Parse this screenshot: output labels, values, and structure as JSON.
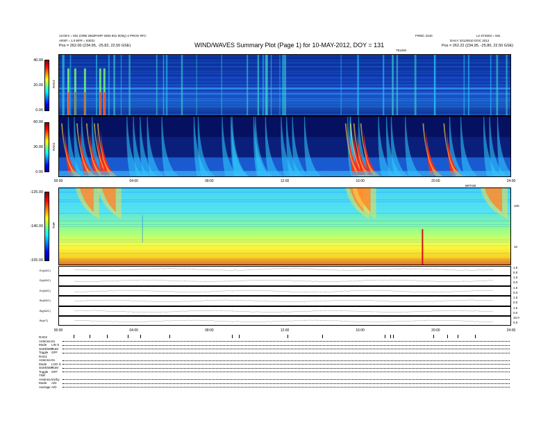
{
  "header": {
    "title": "WIND/WAVES Summary Plot (Page 1) for 10-MAY-2012, DOY = 131",
    "left_line1": "13:00:0 = 931 (ORB 2563PARP 2593 931 9/25y) 4 PROG RFC",
    "left_line2": "ARSP = 1.9 BFR = 93031",
    "left_line3": "Pos = 262.00 (234.95, -25.82, 22.50 GSE)",
    "right_line1": "L2 ST3003 = 931",
    "right_line2": "DAILY 20120510 DOC 2012",
    "right_line3": "Pos = 262.22 (234.95, -25.80, 22.50 GSE)",
    "center_small": "FRWC 2440",
    "subtitle_small": "TELEM"
  },
  "rad2": {
    "label": "RAD2",
    "ticks": [
      "40.00",
      "20.00",
      "0.00"
    ]
  },
  "rad1": {
    "label": "RAD1",
    "ticks": [
      "60.00",
      "30.00",
      "0.00"
    ]
  },
  "tnr": {
    "label": "TNR",
    "ticks": [
      "-125.00",
      "-140.00",
      "-155.00"
    ],
    "right_ticks": [
      "100",
      "10"
    ],
    "right_label": "BRTOB"
  },
  "time_ticks": [
    "00:00",
    "04:00",
    "08:00",
    "12:00",
    "16:00",
    "20:00",
    "24:00"
  ],
  "strips": [
    {
      "label": "Ex(ADC)",
      "right": [
        "1.5",
        "0.0"
      ]
    },
    {
      "label": "Ey(ADC)",
      "right": [
        "1.5",
        "0.0"
      ]
    },
    {
      "label": "Ez(ADC)",
      "right": [
        "1.5",
        "0.0"
      ]
    },
    {
      "label": "Bx(ADC)",
      "right": [
        "1.5",
        "0.0"
      ]
    },
    {
      "label": "By(ADC)",
      "right": [
        "1.5",
        "0.0"
      ]
    },
    {
      "label": "Bz(nT)",
      "right": [
        "10.0",
        "0.0"
      ]
    }
  ],
  "modes": [
    {
      "name": "RAD2",
      "rows": [
        [
          "Antenna",
          "Ex"
        ],
        [
          "Mode",
          "LIN S"
        ],
        [
          "SUM/SEP",
          "SUM"
        ],
        [
          "Toggle",
          "OFF"
        ]
      ]
    },
    {
      "name": "RAD1",
      "rows": [
        [
          "Antenna",
          "Ex"
        ],
        [
          "Mode",
          "LOG S"
        ],
        [
          "SUM/SEP",
          "SUM"
        ],
        [
          "Toggle",
          "OFF"
        ]
      ]
    },
    {
      "name": "TNR",
      "rows": [
        [
          "Antenna",
          "Ex/Ey"
        ],
        [
          "Mode",
          "A/D"
        ],
        [
          "Average",
          "A/D"
        ]
      ]
    }
  ],
  "chart_data": {
    "type": "heatmap",
    "title": "WIND/WAVES Summary Plot (Page 1) for 10-MAY-2012, DOY = 131",
    "x_range": [
      "00:00",
      "24:00"
    ],
    "panels": [
      {
        "name": "RAD2",
        "ylim": [
          0,
          40
        ]
      },
      {
        "name": "RAD1",
        "ylim": [
          0,
          60
        ]
      },
      {
        "name": "TNR",
        "ylim": [
          -155,
          -125
        ]
      }
    ]
  }
}
